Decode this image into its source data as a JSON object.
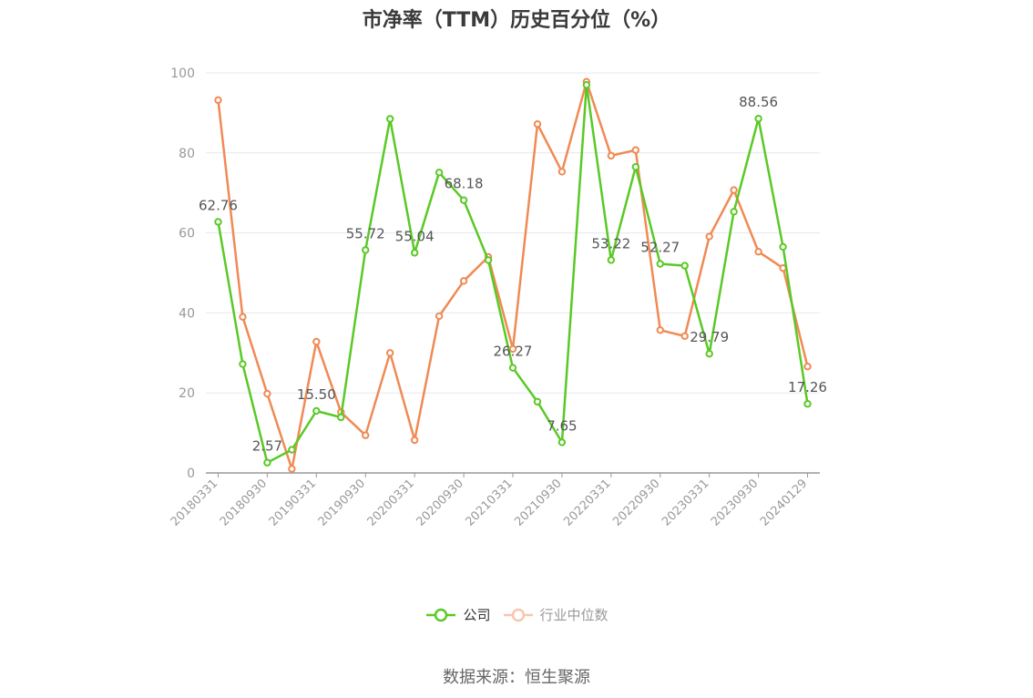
{
  "chart_data": {
    "type": "line",
    "title": "市净率（TTM）历史百分位（%）",
    "ylim": [
      0,
      100
    ],
    "yticks": [
      0,
      20,
      40,
      60,
      80,
      100
    ],
    "grid": true,
    "legend_position": "bottom-center",
    "x": [
      "20180331",
      "20180630",
      "20180930",
      "20181231",
      "20190331",
      "20190630",
      "20190930",
      "20191231",
      "20200331",
      "20200630",
      "20200930",
      "20201231",
      "20210331",
      "20210630",
      "20210930",
      "20211231",
      "20220331",
      "20220630",
      "20220930",
      "20221231",
      "20230331",
      "20230630",
      "20230930",
      "20231231",
      "20240129"
    ],
    "xtick_labels": [
      "20180331",
      "20180930",
      "20190331",
      "20190930",
      "20200331",
      "20200930",
      "20210331",
      "20210930",
      "20220331",
      "20220930",
      "20230331",
      "20230930",
      "20240129"
    ],
    "series": [
      {
        "name": "公司",
        "color": "#5ac925",
        "values": [
          62.76,
          27.2,
          2.57,
          5.8,
          15.5,
          13.9,
          55.72,
          88.5,
          55.04,
          75.1,
          68.18,
          53.2,
          26.27,
          17.8,
          7.65,
          97.0,
          53.22,
          76.5,
          52.27,
          51.8,
          29.79,
          65.3,
          88.56,
          56.5,
          17.26
        ],
        "data_labels": [
          "62.76",
          "",
          "2.57",
          "",
          "15.50",
          "",
          "55.72",
          "",
          "55.04",
          "",
          "68.18",
          "",
          "26.27",
          "",
          "7.65",
          "",
          "53.22",
          "",
          "52.27",
          "",
          "29.79",
          "",
          "88.56",
          "",
          "17.26"
        ]
      },
      {
        "name": "行业中位数",
        "color": "#f08a55",
        "values": [
          93.2,
          39.0,
          19.8,
          1.0,
          32.8,
          15.2,
          9.4,
          30.0,
          8.2,
          39.2,
          48.0,
          54.0,
          31.0,
          87.2,
          75.3,
          97.8,
          79.3,
          80.7,
          35.7,
          34.2,
          59.1,
          70.7,
          55.3,
          51.2,
          26.6
        ]
      }
    ]
  },
  "legend": {
    "items": [
      {
        "label": "公司"
      },
      {
        "label": "行业中位数"
      }
    ]
  },
  "source_text": "数据来源：恒生聚源"
}
